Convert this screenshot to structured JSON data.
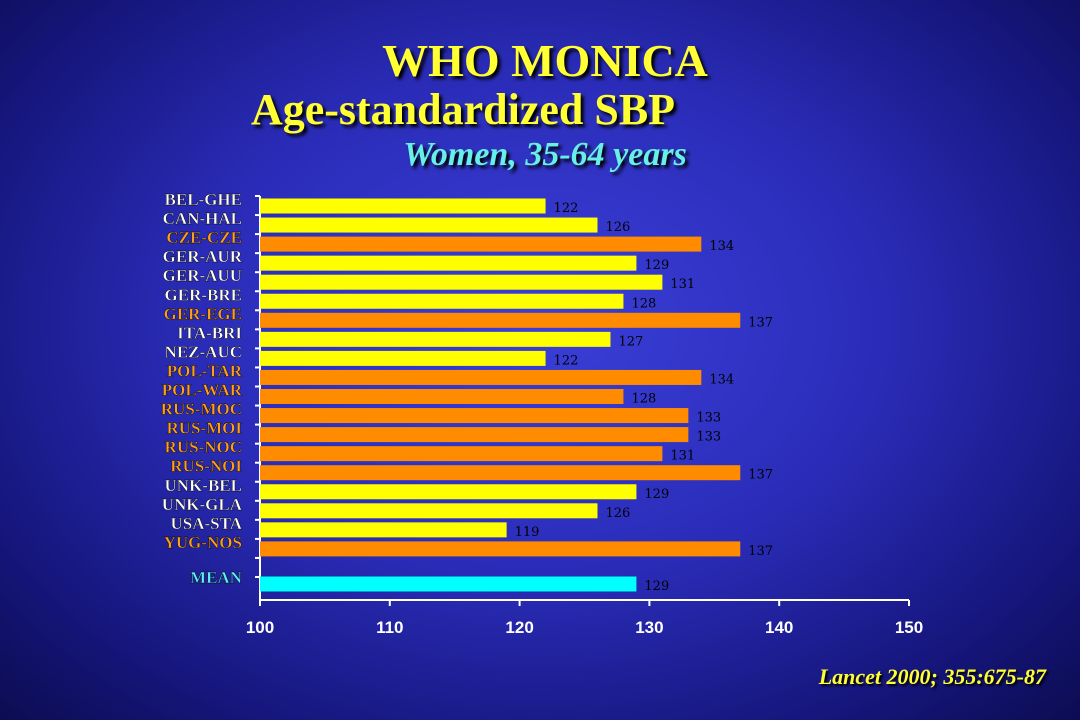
{
  "title_line1": "WHO MONICA",
  "title_line2": "Age-standardized SBP",
  "subtitle": "Women, 35-64 years",
  "citation": "Lancet 2000; 355:675-87",
  "colors": {
    "highlight_bar": "#ffff00",
    "baseline_bar": "#ff8c00",
    "mean_bar": "#00ffff",
    "label_white": "#ffffff",
    "label_orange": "#ff9f1a",
    "label_cyan": "#5ff0ff"
  },
  "chart_data": {
    "type": "bar",
    "orientation": "horizontal",
    "xlim": [
      100,
      150
    ],
    "xticks": [
      100,
      110,
      120,
      130,
      140,
      150
    ],
    "xlabel": "",
    "ylabel": "",
    "categories": [
      "BEL-GHE",
      "CAN-HAL",
      "CZE-CZE",
      "GER-AUR",
      "GER-AUU",
      "GER-BRE",
      "GER-EGE",
      "ITA-BRI",
      "NEZ-AUC",
      "POL-TAR",
      "POL-WAR",
      "RUS-MOC",
      "RUS-MOI",
      "RUS-NOC",
      "RUS-NOI",
      "UNK-BEL",
      "UNK-GLA",
      "USA-STA",
      "YUG-NOS"
    ],
    "values": [
      122,
      126,
      134,
      129,
      131,
      128,
      137,
      127,
      122,
      134,
      128,
      133,
      133,
      131,
      137,
      129,
      126,
      119,
      137
    ],
    "groups": [
      "yellow",
      "yellow",
      "orange",
      "yellow",
      "yellow",
      "yellow",
      "orange",
      "yellow",
      "yellow",
      "orange",
      "orange",
      "orange",
      "orange",
      "orange",
      "orange",
      "yellow",
      "yellow",
      "yellow",
      "orange"
    ],
    "mean": {
      "label": "MEAN",
      "value": 129
    }
  }
}
